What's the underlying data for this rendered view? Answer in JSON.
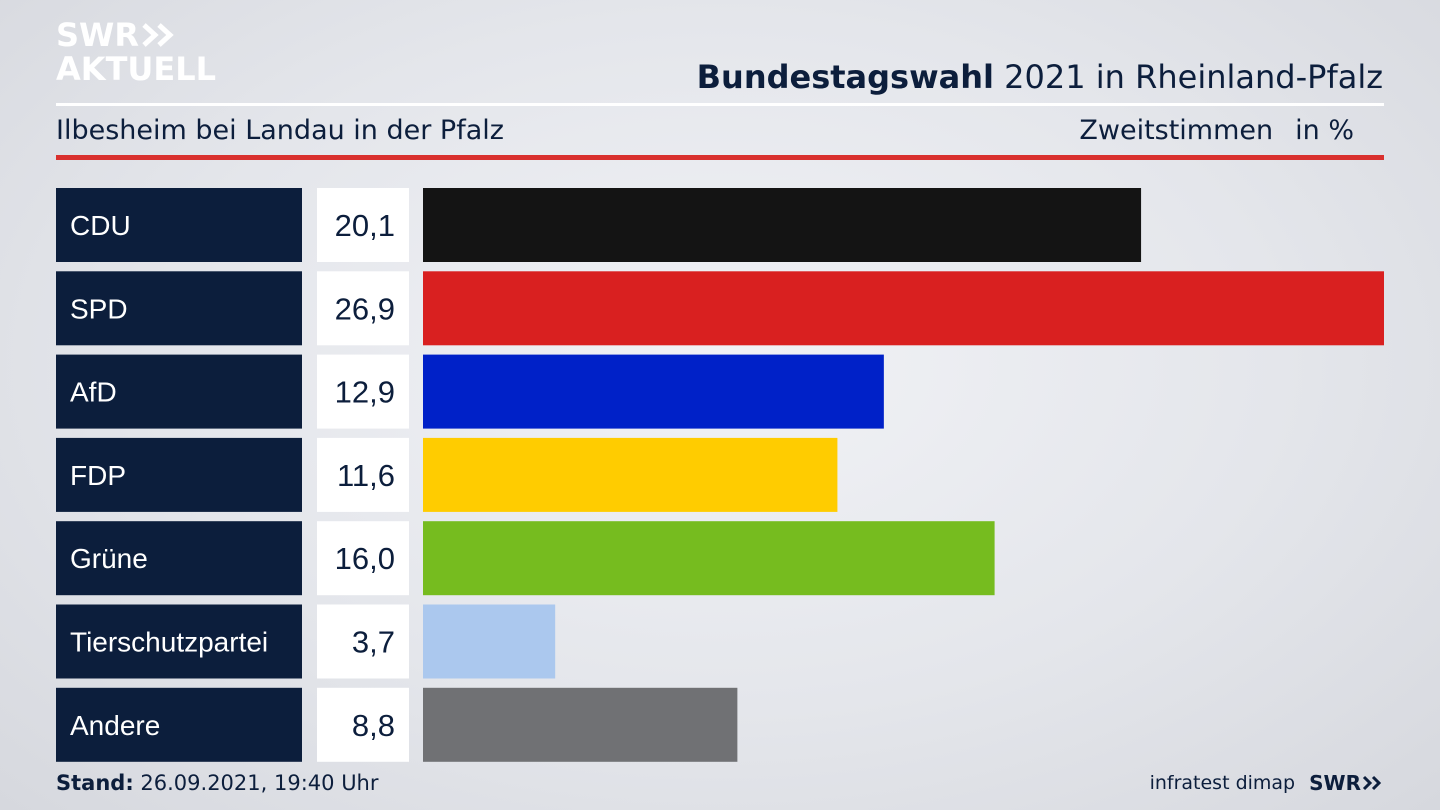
{
  "logo": {
    "line1": "SWR",
    "line2": "AKTUELL",
    "icon": "double-chevron-right-icon"
  },
  "header": {
    "title_bold": "Bundestagswahl",
    "title_rest": "2021 in Rheinland-Pfalz",
    "subtitle": "Ilbesheim bei Landau in der Pfalz",
    "measure": "Zweitstimmen",
    "unit": "in %"
  },
  "chart_data": {
    "type": "bar",
    "orientation": "horizontal",
    "categories": [
      "CDU",
      "SPD",
      "AfD",
      "FDP",
      "Grüne",
      "Tierschutzpartei",
      "Andere"
    ],
    "values": [
      20.1,
      26.9,
      12.9,
      11.6,
      16.0,
      3.7,
      8.8
    ],
    "value_labels": [
      "20,1",
      "26,9",
      "12,9",
      "11,6",
      "16,0",
      "3,7",
      "8,8"
    ],
    "colors": [
      "#141414",
      "#d92020",
      "#0021c8",
      "#ffcc00",
      "#76bc1f",
      "#abc8ee",
      "#707174"
    ],
    "xlim": [
      0,
      26.9
    ],
    "grid": false
  },
  "footer": {
    "stand_label": "Stand:",
    "stand_value": "26.09.2021, 19:40 Uhr",
    "source": "infratest dimap",
    "brand": "SWR"
  }
}
